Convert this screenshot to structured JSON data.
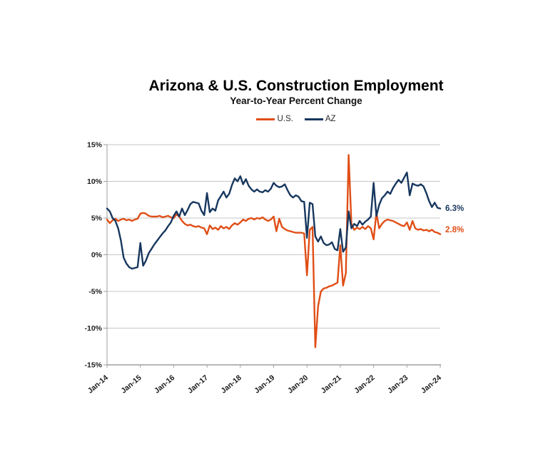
{
  "header": {
    "title": "Arizona & U.S. Construction Employment",
    "subtitle": "Year-to-Year Percent Change"
  },
  "legend": {
    "us_label": "U.S.",
    "az_label": "AZ"
  },
  "end_labels": {
    "az": "6.3%",
    "us": "2.8%"
  },
  "chart_data": {
    "type": "line",
    "title": "Arizona & U.S. Construction Employment",
    "subtitle": "Year-to-Year Percent Change",
    "x_start": "Jan-14",
    "x_end": "Jan-24",
    "x_freq": "monthly",
    "x_tick_labels": [
      "Jan-14",
      "Jan-15",
      "Jan-16",
      "Jan-17",
      "Jan-18",
      "Jan-19",
      "Jan-20",
      "Jan-21",
      "Jan-22",
      "Jan-23",
      "Jan-24"
    ],
    "y_ticks": [
      15,
      10,
      5,
      0,
      -5,
      -10,
      -15
    ],
    "y_tick_labels": [
      "15%",
      "10%",
      "5%",
      "0%",
      "-5%",
      "-10%",
      "-15%"
    ],
    "ylim": [
      -15,
      15
    ],
    "grid": "horizontal",
    "legend_position": "top",
    "series": [
      {
        "name": "U.S.",
        "color": "#E04E16",
        "end_label": "2.8%",
        "values": [
          4.8,
          4.3,
          4.7,
          4.9,
          4.6,
          4.8,
          4.9,
          4.7,
          4.8,
          4.6,
          4.8,
          4.9,
          5.6,
          5.7,
          5.6,
          5.3,
          5.2,
          5.2,
          5.2,
          5.3,
          5.1,
          5.2,
          5.3,
          5.1,
          5.0,
          5.5,
          5.2,
          4.6,
          4.2,
          4.0,
          4.1,
          3.9,
          3.8,
          3.9,
          3.7,
          3.6,
          2.8,
          4.0,
          3.5,
          3.7,
          3.4,
          3.9,
          3.6,
          3.8,
          3.5,
          4.0,
          4.3,
          4.1,
          4.4,
          4.8,
          4.6,
          4.9,
          5.0,
          4.8,
          5.0,
          4.9,
          5.1,
          4.8,
          4.6,
          4.8,
          5.2,
          3.2,
          4.9,
          3.8,
          3.5,
          3.3,
          3.2,
          3.1,
          3.0,
          3.0,
          3.0,
          2.9,
          -2.8,
          3.4,
          3.8,
          -12.6,
          -7.0,
          -5.0,
          -4.6,
          -4.5,
          -4.3,
          -4.2,
          -4.0,
          -3.8,
          1.3,
          -4.2,
          -2.5,
          13.6,
          4.2,
          3.4,
          3.7,
          3.5,
          3.8,
          3.5,
          3.9,
          3.6,
          2.1,
          5.7,
          3.6,
          4.2,
          4.6,
          4.8,
          4.7,
          4.6,
          4.4,
          4.2,
          4.0,
          3.9,
          4.4,
          3.4,
          4.6,
          3.6,
          3.4,
          3.5,
          3.3,
          3.4,
          3.2,
          3.4,
          3.1,
          3.0,
          2.8
        ]
      },
      {
        "name": "AZ",
        "color": "#17375E",
        "end_label": "6.3%",
        "values": [
          6.3,
          5.9,
          5.0,
          4.6,
          3.6,
          1.9,
          -0.4,
          -1.2,
          -1.7,
          -1.9,
          -1.8,
          -1.7,
          1.6,
          -1.5,
          -0.8,
          0.2,
          0.8,
          1.4,
          1.9,
          2.4,
          2.9,
          3.3,
          3.9,
          4.4,
          5.3,
          5.9,
          5.2,
          6.3,
          5.4,
          6.1,
          6.9,
          7.2,
          7.1,
          7.0,
          6.0,
          5.4,
          8.4,
          5.8,
          6.3,
          6.0,
          7.4,
          8.0,
          8.6,
          7.8,
          8.3,
          9.5,
          10.4,
          10.0,
          10.7,
          9.6,
          10.3,
          9.4,
          8.9,
          8.6,
          8.9,
          8.6,
          8.5,
          8.8,
          8.6,
          9.0,
          9.8,
          9.4,
          9.2,
          9.3,
          9.6,
          8.8,
          8.1,
          7.8,
          8.1,
          7.9,
          7.3,
          7.2,
          2.3,
          7.1,
          6.9,
          2.5,
          1.8,
          2.5,
          1.6,
          1.3,
          1.4,
          1.7,
          0.8,
          0.6,
          3.5,
          0.4,
          1.0,
          5.9,
          3.6,
          4.2,
          3.9,
          4.6,
          4.1,
          4.5,
          4.8,
          5.2,
          9.8,
          5.3,
          6.8,
          7.7,
          8.1,
          8.6,
          8.3,
          9.1,
          9.7,
          10.2,
          9.8,
          10.5,
          11.2,
          8.1,
          9.7,
          9.5,
          9.4,
          9.6,
          9.3,
          8.4,
          7.3,
          6.5,
          7.1,
          6.4,
          6.3
        ]
      }
    ]
  }
}
